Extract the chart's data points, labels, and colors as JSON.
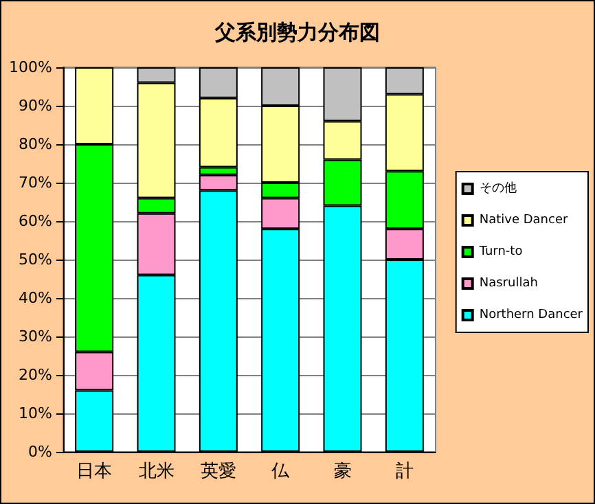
{
  "chart_data": {
    "type": "bar",
    "title": "父系別勢力分布図",
    "stacked": true,
    "categories": [
      "日本",
      "北米",
      "英愛",
      "仏",
      "豪",
      "計"
    ],
    "series": [
      {
        "name": "Northern Dancer",
        "color": "#00ffff",
        "values": [
          16,
          46,
          68,
          58,
          64,
          50
        ]
      },
      {
        "name": "Nasrullah",
        "color": "#ff99cc",
        "values": [
          10,
          16,
          4,
          8,
          0,
          8
        ]
      },
      {
        "name": "Turn-to",
        "color": "#00ff00",
        "values": [
          54,
          4,
          2,
          4,
          12,
          15
        ]
      },
      {
        "name": "Native Dancer",
        "color": "#ffff99",
        "values": [
          20,
          30,
          18,
          20,
          10,
          20
        ]
      },
      {
        "name": "その他",
        "color": "#c0c0c0",
        "values": [
          0,
          4,
          8,
          10,
          14,
          7
        ]
      }
    ],
    "ylim": [
      0,
      100
    ],
    "yticks": [
      {
        "value": 0,
        "label": "0%"
      },
      {
        "value": 10,
        "label": "10%"
      },
      {
        "value": 20,
        "label": "20%"
      },
      {
        "value": 30,
        "label": "30%"
      },
      {
        "value": 40,
        "label": "40%"
      },
      {
        "value": 50,
        "label": "50%"
      },
      {
        "value": 60,
        "label": "60%"
      },
      {
        "value": 70,
        "label": "70%"
      },
      {
        "value": 80,
        "label": "80%"
      },
      {
        "value": 90,
        "label": "90%"
      },
      {
        "value": 100,
        "label": "100%"
      }
    ],
    "grid": "y",
    "legend": "right"
  }
}
